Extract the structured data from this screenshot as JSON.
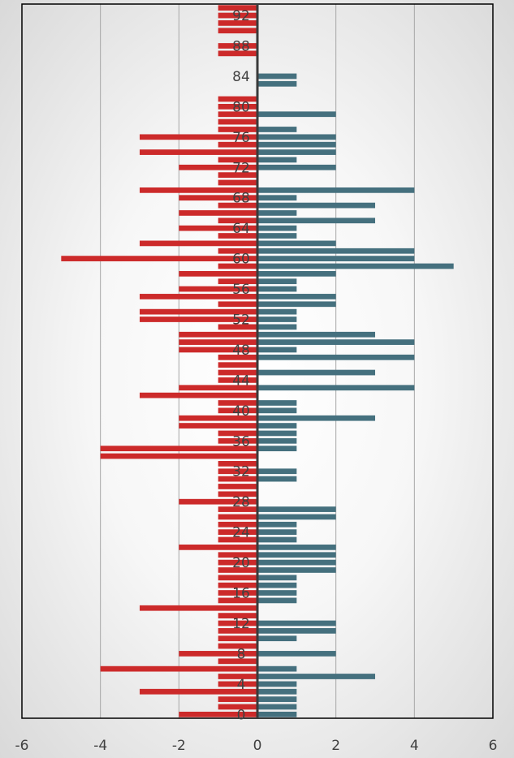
{
  "chart_data": {
    "type": "bar",
    "orientation": "horizontal",
    "layout": "diverging",
    "title": "",
    "xlabel": "",
    "ylabel": "",
    "xlim": [
      -6,
      6
    ],
    "x_ticks": [
      "-6",
      "-4",
      "-2",
      "0",
      "2",
      "4",
      "6"
    ],
    "x_tick_values": [
      -6,
      -4,
      -2,
      0,
      2,
      4,
      6
    ],
    "y_tick_labels": [
      "0",
      "4",
      "8",
      "12",
      "16",
      "20",
      "24",
      "28",
      "32",
      "36",
      "40",
      "44",
      "48",
      "52",
      "56",
      "60",
      "64",
      "68",
      "72",
      "76",
      "80",
      "84",
      "88",
      "92"
    ],
    "grid": true,
    "categories": [
      0,
      1,
      2,
      3,
      4,
      5,
      6,
      7,
      8,
      9,
      10,
      11,
      12,
      13,
      14,
      15,
      16,
      17,
      18,
      19,
      20,
      21,
      22,
      23,
      24,
      25,
      26,
      27,
      28,
      29,
      30,
      31,
      32,
      33,
      34,
      35,
      36,
      37,
      38,
      39,
      40,
      41,
      42,
      43,
      44,
      45,
      46,
      47,
      48,
      49,
      50,
      51,
      52,
      53,
      54,
      55,
      56,
      57,
      58,
      59,
      60,
      61,
      62,
      63,
      64,
      65,
      66,
      67,
      68,
      69,
      70,
      71,
      72,
      73,
      74,
      75,
      76,
      77,
      78,
      79,
      80,
      81,
      82,
      83,
      84,
      85,
      86,
      87,
      88,
      89,
      90,
      91,
      92,
      93
    ],
    "series": [
      {
        "color": "#cc2a2a",
        "values": [
          -2,
          -1,
          -1,
          -3,
          -1,
          -1,
          -4,
          -1,
          -2,
          -1,
          -1,
          -1,
          -1,
          -1,
          -3,
          -1,
          -1,
          -1,
          -1,
          -1,
          -1,
          -1,
          -2,
          -1,
          -1,
          -1,
          -1,
          -1,
          -2,
          -1,
          -1,
          -1,
          -1,
          -1,
          -4,
          -4,
          -1,
          -1,
          -2,
          -2,
          -1,
          -1,
          -3,
          -2,
          -1,
          -1,
          -1,
          -1,
          -2,
          -2,
          -2,
          -1,
          -3,
          -3,
          -1,
          -3,
          -2,
          -1,
          -2,
          -1,
          -5,
          -1,
          -3,
          -1,
          -2,
          -1,
          -2,
          -1,
          -2,
          -3,
          -1,
          -1,
          -2,
          -1,
          -3,
          -1,
          -3,
          -1,
          -1,
          -1,
          -1,
          -1,
          0,
          0,
          0,
          0,
          0,
          -1,
          -1,
          0,
          -1,
          -1,
          -1,
          -1
        ]
      },
      {
        "color": "#45707e",
        "values": [
          1,
          1,
          1,
          1,
          1,
          3,
          1,
          0,
          2,
          0,
          1,
          2,
          2,
          0,
          0,
          1,
          1,
          1,
          1,
          2,
          2,
          2,
          2,
          1,
          1,
          1,
          2,
          2,
          0,
          0,
          0,
          1,
          1,
          0,
          0,
          1,
          1,
          1,
          1,
          3,
          1,
          1,
          0,
          4,
          0,
          3,
          0,
          4,
          1,
          4,
          3,
          1,
          1,
          1,
          2,
          2,
          1,
          1,
          2,
          5,
          4,
          4,
          2,
          1,
          1,
          3,
          1,
          3,
          1,
          4,
          0,
          0,
          2,
          1,
          2,
          2,
          2,
          1,
          0,
          2,
          0,
          0,
          0,
          1,
          1,
          0,
          0,
          0,
          0,
          0,
          0,
          0,
          0,
          0
        ]
      }
    ]
  }
}
